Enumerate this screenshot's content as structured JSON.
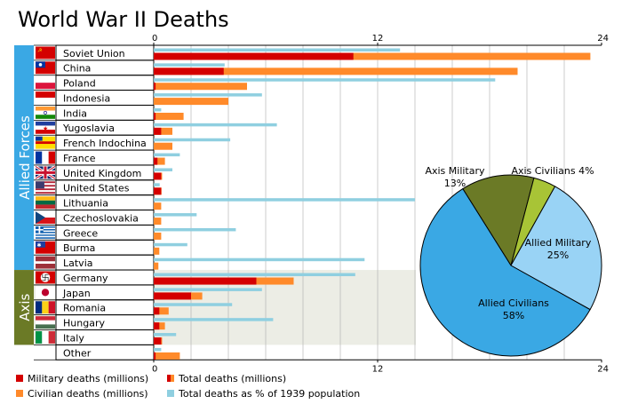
{
  "chart_data": [
    {
      "type": "bar",
      "title": "World War II Deaths",
      "groups": [
        {
          "name": "Allied Forces",
          "color": "#3aa8e4"
        },
        {
          "name": "Axis",
          "color": "#6b7a26"
        }
      ],
      "x_range": [
        0,
        24
      ],
      "x_ticks": [
        "0",
        "12",
        "24"
      ],
      "categories": [
        "Soviet Union",
        "China",
        "Poland",
        "Indonesia",
        "India",
        "Yugoslavia",
        "French Indochina",
        "France",
        "United Kingdom",
        "United States",
        "Lithuania",
        "Czechoslovakia",
        "Greece",
        "Burma",
        "Latvia",
        "Germany",
        "Japan",
        "Romania",
        "Hungary",
        "Italy",
        "Other"
      ],
      "category_groups": [
        "Allied Forces",
        "Allied Forces",
        "Allied Forces",
        "Allied Forces",
        "Allied Forces",
        "Allied Forces",
        "Allied Forces",
        "Allied Forces",
        "Allied Forces",
        "Allied Forces",
        "Allied Forces",
        "Allied Forces",
        "Allied Forces",
        "Allied Forces",
        "Allied Forces",
        "Axis",
        "Axis",
        "Axis",
        "Axis",
        "Axis",
        ""
      ],
      "series": [
        {
          "name": "Military deaths (millions)",
          "color": "#d40000",
          "values": [
            10.7,
            3.75,
            0.1,
            0,
            0.1,
            0.4,
            0,
            0.2,
            0.4,
            0.4,
            0,
            0,
            0,
            0,
            0,
            5.5,
            2.0,
            0.3,
            0.3,
            0.4,
            0.1
          ]
        },
        {
          "name": "Total deaths (millions)",
          "color": "#ff8a2a",
          "values": [
            23.4,
            19.5,
            5.0,
            4.0,
            1.6,
            1.0,
            1.0,
            0.6,
            0.45,
            0.42,
            0.4,
            0.4,
            0.4,
            0.3,
            0.25,
            7.5,
            2.6,
            0.8,
            0.6,
            0.45,
            1.4
          ]
        },
        {
          "name": "Civilian deaths (millions)",
          "color": "#ff8a2a",
          "values": [
            12.7,
            15.75,
            4.9,
            4.0,
            1.5,
            0.6,
            1.0,
            0.4,
            0.05,
            0.02,
            0.4,
            0.4,
            0.4,
            0.3,
            0.25,
            2.0,
            0.6,
            0.5,
            0.3,
            0.05,
            1.3
          ]
        },
        {
          "name": "Total deaths as % of 1939 population",
          "color": "#8fcfe0",
          "values": [
            13.2,
            3.8,
            18.3,
            5.8,
            0.4,
            6.6,
            4.1,
            1.4,
            1.0,
            0.32,
            14.0,
            2.3,
            4.4,
            1.8,
            11.3,
            10.8,
            5.8,
            4.2,
            6.4,
            1.2,
            0.4
          ]
        }
      ],
      "legend": {
        "placement": "bottom-left"
      }
    },
    {
      "type": "pie",
      "slices": [
        {
          "label": "Axis Military",
          "value": 13,
          "pct": "13%",
          "color": "#6b7a26"
        },
        {
          "label": "Axis Civilians",
          "value": 4,
          "pct": "4%",
          "color": "#a8c436"
        },
        {
          "label": "Allied Military",
          "value": 25,
          "pct": "25%",
          "color": "#99d3f5"
        },
        {
          "label": "Allied Civilians",
          "value": 58,
          "pct": "58%",
          "color": "#3aa8e4"
        }
      ]
    }
  ],
  "flags": [
    {
      "country": "Soviet Union",
      "icon": "flag-soviet-union-icon",
      "colors": [
        "#d40000"
      ]
    },
    {
      "country": "China",
      "icon": "flag-china-icon",
      "colors": [
        "#d40000",
        "#0033a0"
      ]
    },
    {
      "country": "Poland",
      "icon": "flag-poland-icon",
      "colors": [
        "#ffffff",
        "#dc143c"
      ]
    },
    {
      "country": "Indonesia",
      "icon": "flag-indonesia-icon",
      "colors": [
        "#d40000",
        "#ffffff"
      ]
    },
    {
      "country": "India",
      "icon": "flag-india-icon",
      "colors": [
        "#ff9933",
        "#ffffff",
        "#138808"
      ]
    },
    {
      "country": "Yugoslavia",
      "icon": "flag-yugoslavia-icon",
      "colors": [
        "#1f3e9e",
        "#ffffff",
        "#d40000"
      ]
    },
    {
      "country": "French Indochina",
      "icon": "flag-french-indochina-icon",
      "colors": [
        "#ffdd00",
        "#d40000"
      ]
    },
    {
      "country": "France",
      "icon": "flag-france-icon",
      "colors": [
        "#0033a0",
        "#ffffff",
        "#d40000"
      ]
    },
    {
      "country": "United Kingdom",
      "icon": "flag-united-kingdom-icon",
      "colors": [
        "#012169",
        "#ffffff",
        "#c8102e"
      ]
    },
    {
      "country": "United States",
      "icon": "flag-united-states-icon",
      "colors": [
        "#b22234",
        "#ffffff",
        "#3c3b6e"
      ]
    },
    {
      "country": "Lithuania",
      "icon": "flag-lithuania-icon",
      "colors": [
        "#fdb913",
        "#006a44",
        "#c1272d"
      ]
    },
    {
      "country": "Czechoslovakia",
      "icon": "flag-czechoslovakia-icon",
      "colors": [
        "#ffffff",
        "#d7141a",
        "#11457e"
      ]
    },
    {
      "country": "Greece",
      "icon": "flag-greece-icon",
      "colors": [
        "#0d5eaf",
        "#ffffff"
      ]
    },
    {
      "country": "Burma",
      "icon": "flag-burma-icon",
      "colors": [
        "#d40000",
        "#1f3e9e"
      ]
    },
    {
      "country": "Latvia",
      "icon": "flag-latvia-icon",
      "colors": [
        "#9e3039",
        "#ffffff"
      ]
    },
    {
      "country": "Germany",
      "icon": "flag-germany-swastika-icon",
      "colors": [
        "#d40000",
        "#ffffff",
        "#000000"
      ]
    },
    {
      "country": "Japan",
      "icon": "flag-japan-icon",
      "colors": [
        "#ffffff",
        "#bc002d"
      ]
    },
    {
      "country": "Romania",
      "icon": "flag-romania-icon",
      "colors": [
        "#002b7f",
        "#fcd116",
        "#ce1126"
      ]
    },
    {
      "country": "Hungary",
      "icon": "flag-hungary-icon",
      "colors": [
        "#ce2939",
        "#ffffff",
        "#477050"
      ]
    },
    {
      "country": "Italy",
      "icon": "flag-italy-icon",
      "colors": [
        "#009246",
        "#ffffff",
        "#ce2b37"
      ]
    }
  ],
  "colors": {
    "axis_band": "#ecede5",
    "grid": "#aaaaaa"
  }
}
